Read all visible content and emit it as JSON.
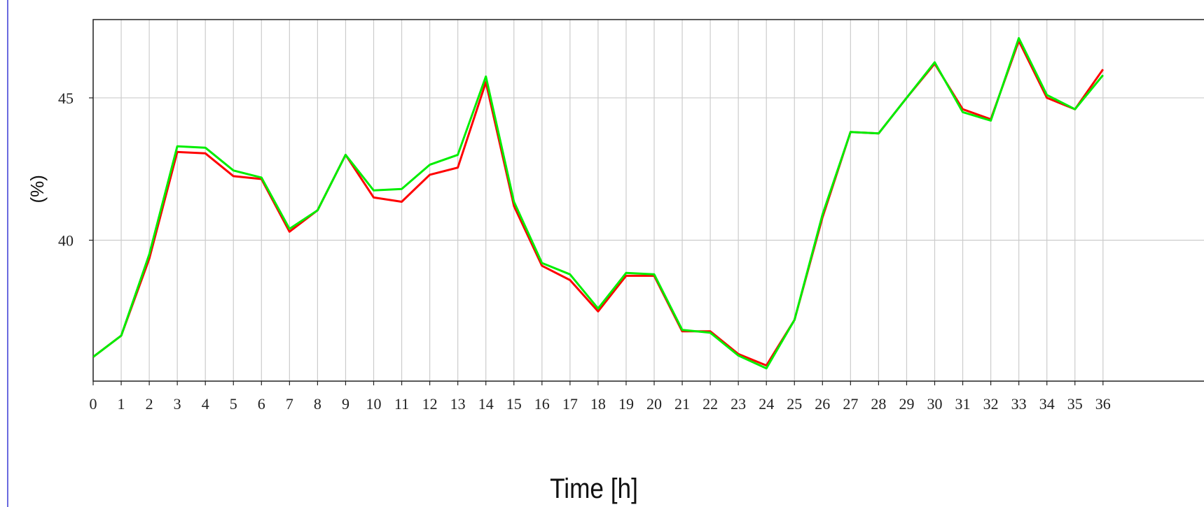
{
  "chart_data": {
    "type": "line",
    "title": "",
    "xlabel": "Time [h]",
    "ylabel": "(%)",
    "xlim": [
      0,
      36
    ],
    "ylim": [
      35.05,
      47.75
    ],
    "x_ticks": [
      "0",
      "1",
      "2",
      "3",
      "4",
      "5",
      "6",
      "7",
      "8",
      "9",
      "10",
      "11",
      "12",
      "13",
      "14",
      "15",
      "16",
      "17",
      "18",
      "19",
      "20",
      "21",
      "22",
      "23",
      "24",
      "25",
      "26",
      "27",
      "28",
      "29",
      "30",
      "31",
      "32",
      "33",
      "34",
      "35",
      "36"
    ],
    "y_ticks": [
      40,
      45
    ],
    "grid": true,
    "legend": "none",
    "x": [
      0,
      1,
      2,
      3,
      4,
      5,
      6,
      7,
      8,
      9,
      10,
      11,
      12,
      13,
      14,
      15,
      16,
      17,
      18,
      19,
      20,
      21,
      22,
      23,
      24,
      25,
      26,
      27,
      28,
      29,
      30,
      31,
      32,
      33,
      34,
      35,
      36
    ],
    "series": [
      {
        "color": "#ff0000",
        "values": [
          35.9,
          36.65,
          39.35,
          43.1,
          43.05,
          42.25,
          42.15,
          40.3,
          41.05,
          43.0,
          41.5,
          41.35,
          42.3,
          42.55,
          45.55,
          41.2,
          39.1,
          38.6,
          37.5,
          38.75,
          38.75,
          36.8,
          36.8,
          36.0,
          35.6,
          37.2,
          40.8,
          43.8,
          43.75,
          45.0,
          46.2,
          44.6,
          44.25,
          47.0,
          45.0,
          44.6,
          46.0
        ]
      },
      {
        "color": "#00ee00",
        "values": [
          35.9,
          36.65,
          39.5,
          43.3,
          43.25,
          42.45,
          42.2,
          40.4,
          41.05,
          43.0,
          41.75,
          41.8,
          42.65,
          43.0,
          45.75,
          41.35,
          39.2,
          38.8,
          37.6,
          38.85,
          38.8,
          36.85,
          36.75,
          35.95,
          35.5,
          37.2,
          40.9,
          43.8,
          43.75,
          45.0,
          46.25,
          44.5,
          44.2,
          47.1,
          45.1,
          44.6,
          45.8
        ]
      }
    ]
  }
}
